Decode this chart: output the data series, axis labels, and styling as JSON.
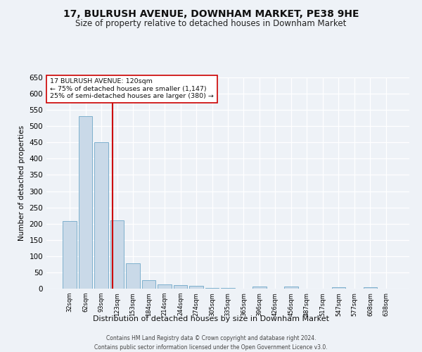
{
  "title": "17, BULRUSH AVENUE, DOWNHAM MARKET, PE38 9HE",
  "subtitle": "Size of property relative to detached houses in Downham Market",
  "xlabel": "Distribution of detached houses by size in Downham Market",
  "ylabel": "Number of detached properties",
  "categories": [
    "32sqm",
    "62sqm",
    "93sqm",
    "123sqm",
    "153sqm",
    "184sqm",
    "214sqm",
    "244sqm",
    "274sqm",
    "305sqm",
    "335sqm",
    "365sqm",
    "396sqm",
    "426sqm",
    "456sqm",
    "487sqm",
    "517sqm",
    "547sqm",
    "577sqm",
    "608sqm",
    "638sqm"
  ],
  "values": [
    207,
    530,
    450,
    210,
    78,
    26,
    14,
    11,
    8,
    3,
    3,
    0,
    6,
    0,
    6,
    0,
    0,
    5,
    0,
    5,
    0
  ],
  "bar_color": "#c9d9e8",
  "bar_edge_color": "#6fa8c8",
  "vline_x": 2.73,
  "vline_color": "#cc0000",
  "ylim": [
    0,
    650
  ],
  "yticks": [
    0,
    50,
    100,
    150,
    200,
    250,
    300,
    350,
    400,
    450,
    500,
    550,
    600,
    650
  ],
  "annotation_line1": "17 BULRUSH AVENUE: 120sqm",
  "annotation_line2": "← 75% of detached houses are smaller (1,147)",
  "annotation_line3": "25% of semi-detached houses are larger (380) →",
  "footer_line1": "Contains HM Land Registry data © Crown copyright and database right 2024.",
  "footer_line2": "Contains public sector information licensed under the Open Government Licence v3.0.",
  "background_color": "#eef2f7",
  "grid_color": "#ffffff",
  "title_fontsize": 10,
  "subtitle_fontsize": 8.5,
  "bar_width": 0.85
}
